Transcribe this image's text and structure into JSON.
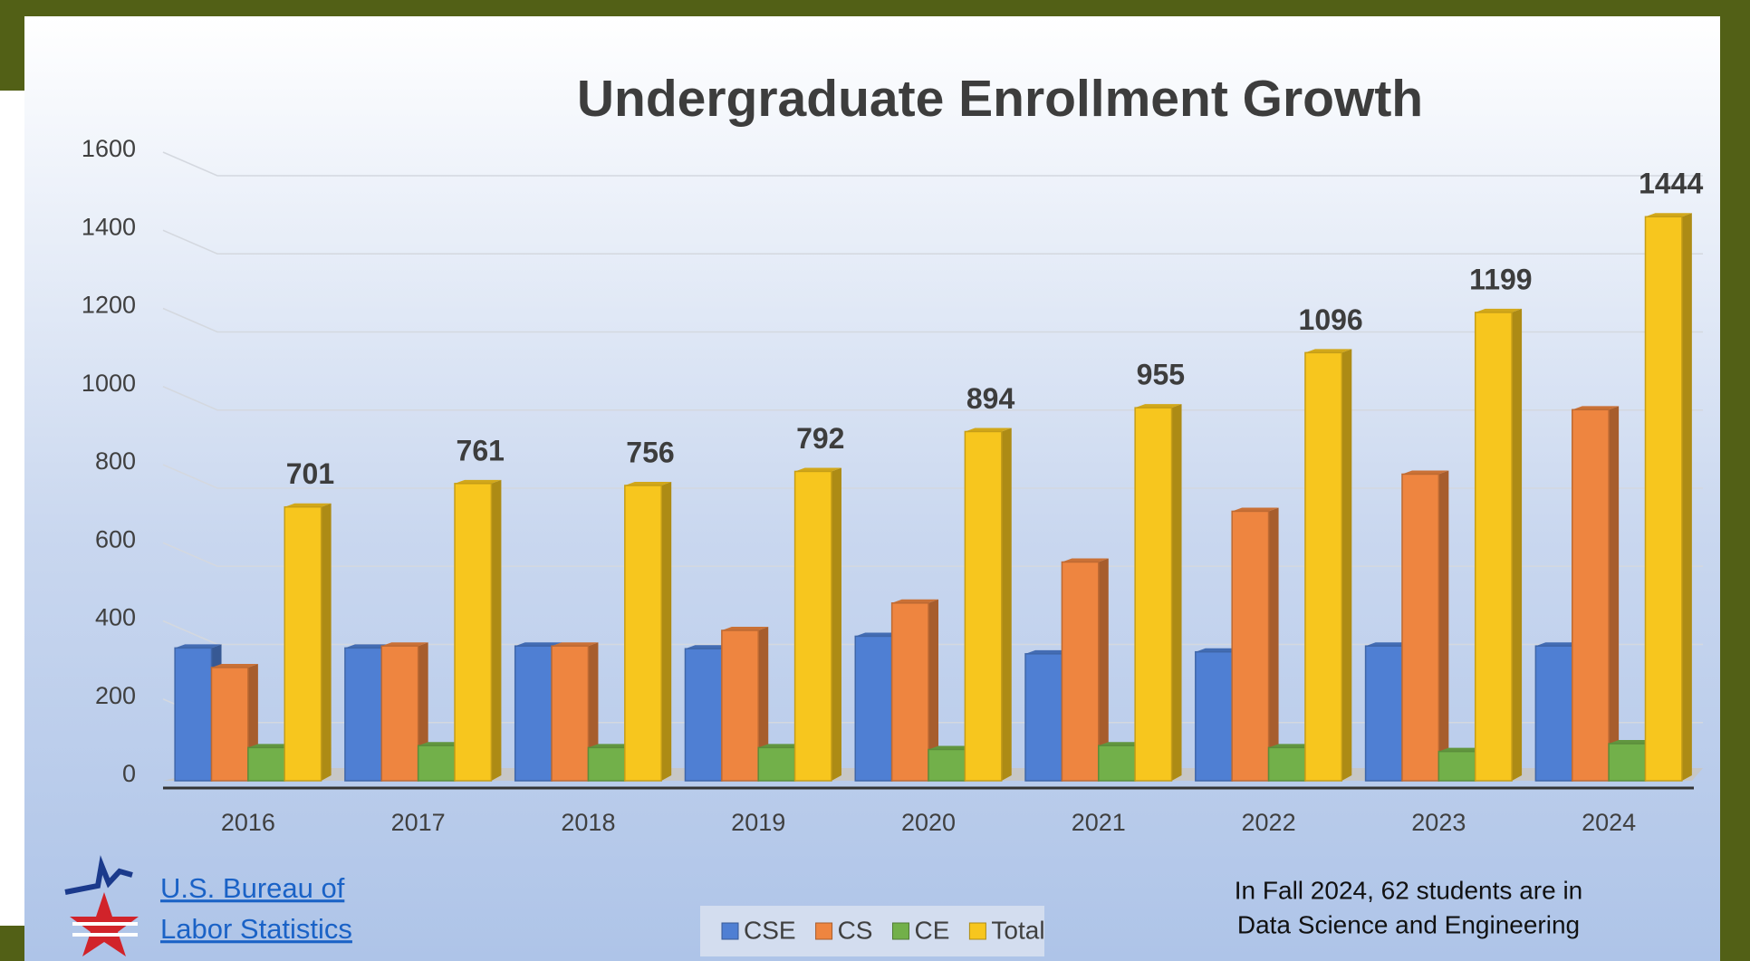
{
  "chart_data": {
    "type": "bar",
    "title": "Undergraduate Enrollment Growth",
    "categories": [
      "2016",
      "2017",
      "2018",
      "2019",
      "2020",
      "2021",
      "2022",
      "2023",
      "2024"
    ],
    "series": [
      {
        "name": "CSE",
        "color": "#4f7fd3",
        "values": [
          340,
          340,
          345,
          338,
          370,
          325,
          330,
          345,
          345
        ]
      },
      {
        "name": "CS",
        "color": "#ee8540",
        "values": [
          290,
          345,
          345,
          385,
          455,
          560,
          690,
          785,
          950
        ]
      },
      {
        "name": "CE",
        "color": "#72b04a",
        "values": [
          85,
          90,
          85,
          85,
          80,
          90,
          85,
          75,
          95
        ]
      },
      {
        "name": "Total",
        "color": "#f7c61e",
        "values": [
          701,
          761,
          756,
          792,
          894,
          955,
          1096,
          1199,
          1444
        ],
        "show_value_labels": true
      }
    ],
    "ylim": [
      0,
      1600
    ],
    "yticks": [
      0,
      200,
      400,
      600,
      800,
      1000,
      1200,
      1400,
      1600
    ],
    "grid": true,
    "legend": "bottom",
    "source_link": [
      "U.S. Bureau of",
      "Labor Statistics"
    ],
    "note": [
      "In Fall 2024, 62 students are in",
      "Data Science and Engineering"
    ]
  }
}
